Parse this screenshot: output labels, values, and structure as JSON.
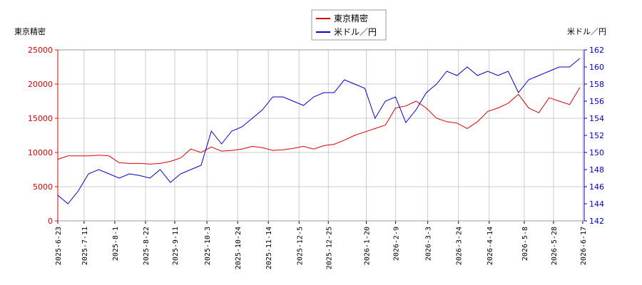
{
  "chart_data": {
    "type": "line",
    "y_label": "東京精密",
    "y2_label": "米ドル／円",
    "x": [
      "2025-6-23",
      "2025-6-30",
      "2025-7-7",
      "2025-7-14",
      "2025-7-21",
      "2025-7-28",
      "2025-8-4",
      "2025-8-11",
      "2025-8-18",
      "2025-8-25",
      "2025-9-1",
      "2025-9-8",
      "2025-9-15",
      "2025-9-22",
      "2025-9-29",
      "2025-10-6",
      "2025-10-13",
      "2025-10-20",
      "2025-10-27",
      "2025-11-3",
      "2025-11-10",
      "2025-11-17",
      "2025-11-24",
      "2025-12-1",
      "2025-12-8",
      "2025-12-15",
      "2025-12-22",
      "2025-12-29",
      "2026-1-5",
      "2026-1-12",
      "2026-1-19",
      "2026-1-26",
      "2026-2-2",
      "2026-2-9",
      "2026-2-16",
      "2026-2-23",
      "2026-3-2",
      "2026-3-9",
      "2026-3-16",
      "2026-3-23",
      "2026-3-30",
      "2026-4-6",
      "2026-4-13",
      "2026-4-20",
      "2026-4-27",
      "2026-5-4",
      "2026-5-11",
      "2026-5-18",
      "2026-5-25",
      "2026-6-1",
      "2026-6-8",
      "2026-6-15"
    ],
    "series": [
      {
        "name": "東京精密",
        "color": "#dd0000",
        "axis": "y",
        "values": [
          9000,
          9500,
          9500,
          9500,
          9600,
          9500,
          8500,
          8400,
          8400,
          8300,
          8400,
          8700,
          9200,
          10500,
          10000,
          10800,
          10200,
          10300,
          10500,
          10900,
          10700,
          10300,
          10400,
          10600,
          10900,
          10500,
          11000,
          11200,
          11800,
          12500,
          13000,
          13500,
          14000,
          16500,
          16800,
          17500,
          16500,
          15000,
          14500,
          14300,
          13500,
          14500,
          16000,
          16500,
          17200,
          18500,
          16500,
          15800,
          18000,
          17500,
          17000,
          19500
        ]
      },
      {
        "name": "米ドル／円",
        "color": "#0000cc",
        "axis": "y2",
        "values": [
          145,
          144,
          145.5,
          147.5,
          148,
          147.5,
          147,
          147.5,
          147.3,
          147,
          148,
          146.5,
          147.5,
          148,
          148.5,
          152.5,
          151,
          152.5,
          153,
          154,
          155,
          156.5,
          156.5,
          156,
          155.5,
          156.5,
          157,
          157,
          158.5,
          158,
          157.5,
          154,
          156,
          156.5,
          153.5,
          155,
          157,
          158,
          159.5,
          159,
          160,
          159,
          159.5,
          159,
          159.5,
          157,
          158.5,
          159,
          159.5,
          160,
          160,
          161
        ]
      }
    ],
    "xlim": [
      "2025-6-23",
      "2026-6-18"
    ],
    "xticks": [
      "2025-6-23",
      "2025-7-11",
      "2025-8-1",
      "2025-8-22",
      "2025-9-11",
      "2025-10-3",
      "2025-10-24",
      "2025-11-14",
      "2025-12-5",
      "2025-12-25",
      "2026-1-20",
      "2026-2-9",
      "2026-3-3",
      "2026-3-24",
      "2026-4-14",
      "2026-5-8",
      "2026-5-28",
      "2026-6-17"
    ],
    "ylim": [
      0,
      25000
    ],
    "yticks": [
      0,
      5000,
      10000,
      15000,
      20000,
      25000
    ],
    "y2lim": [
      142,
      162
    ],
    "y2ticks": [
      142,
      144,
      146,
      148,
      150,
      152,
      154,
      156,
      158,
      160,
      162
    ],
    "grid": true,
    "legend": "top"
  }
}
